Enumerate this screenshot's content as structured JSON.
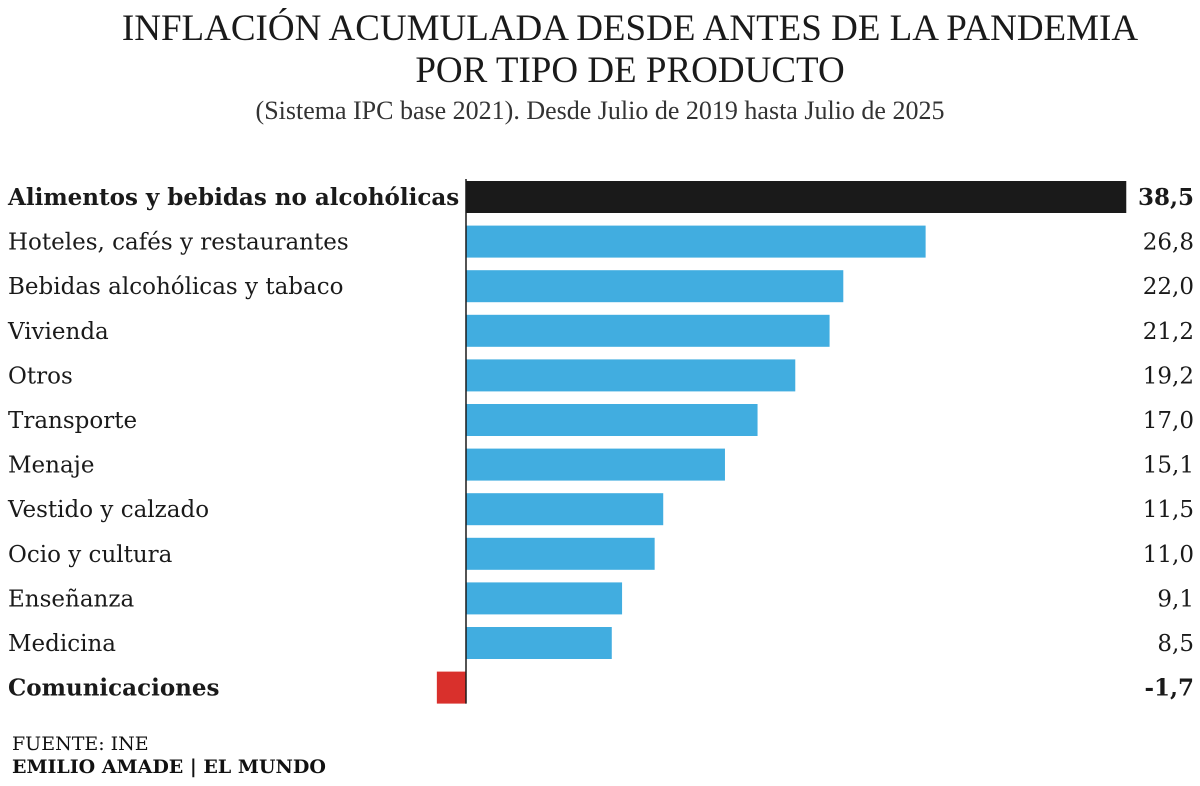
{
  "chart_data": {
    "type": "bar",
    "orientation": "horizontal",
    "title_line1": "INFLACIÓN ACUMULADA DESDE ANTES DE LA PANDEMIA",
    "title_line2": "POR TIPO DE PRODUCTO",
    "subtitle": "(Sistema IPC base 2021). Desde Julio de 2019 hasta Julio de 2025",
    "categories": [
      "Alimentos y bebidas no alcohólicas",
      "Hoteles, cafés y restaurantes",
      "Bebidas alcohólicas y tabaco",
      "Vivienda",
      "Otros",
      "Transporte",
      "Menaje",
      "Vestido y calzado",
      "Ocio y cultura",
      "Enseñanza",
      "Medicina",
      "Comunicaciones"
    ],
    "values": [
      38.5,
      26.8,
      22.0,
      21.2,
      19.2,
      17.0,
      15.1,
      11.5,
      11.0,
      9.1,
      8.5,
      -1.7
    ],
    "value_labels": [
      "38,5",
      "26,8",
      "22,0",
      "21,2",
      "19,2",
      "17,0",
      "15,1",
      "11,5",
      "11,0",
      "9,1",
      "8,5",
      "-1,7"
    ],
    "highlight": [
      "Alimentos y bebidas no alcohólicas",
      "Comunicaciones"
    ],
    "colors": {
      "default": "#41ade0",
      "highlight_positive": "#1a1a1a",
      "highlight_negative": "#d9302c",
      "axis": "#1a1a1a"
    },
    "grid": false,
    "legend": "none"
  },
  "footer": {
    "source": "FUENTE: INE",
    "credit": "EMILIO AMADE | EL MUNDO"
  }
}
